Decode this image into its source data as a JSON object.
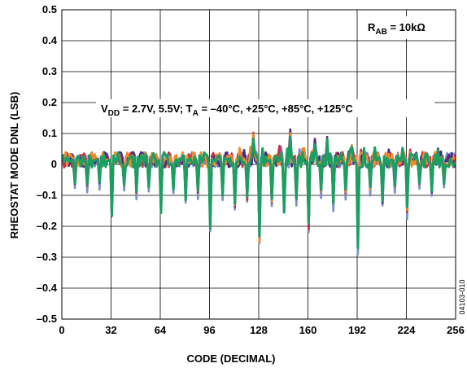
{
  "chart_data": {
    "type": "line",
    "title": "",
    "xlabel": "CODE (DECIMAL)",
    "ylabel": "RHEOSTAT MODE DNL (LSB)",
    "xlim": [
      0,
      256
    ],
    "ylim": [
      -0.5,
      0.5
    ],
    "x_ticks": [
      0,
      32,
      64,
      96,
      128,
      160,
      192,
      224,
      256
    ],
    "x_tick_labels": [
      "0",
      "32",
      "64",
      "96",
      "128",
      "160",
      "192",
      "224",
      "256"
    ],
    "y_ticks": [
      -0.5,
      -0.4,
      -0.3,
      -0.2,
      -0.1,
      0,
      0.1,
      0.2,
      0.3,
      0.4,
      0.5
    ],
    "y_tick_labels": [
      "–0.5",
      "–0.4",
      "–0.3",
      "–0.2",
      "–0.1",
      "0",
      "0.1",
      "0.2",
      "0.3",
      "0.4",
      "0.5"
    ],
    "grid": true,
    "annotations": {
      "rab_main": "R",
      "rab_sub": "AB",
      "rab_rest": " = 10kΩ",
      "cond_v": "V",
      "cond_v_sub": "DD",
      "cond_mid": " = 2.7V, 5.5V; T",
      "cond_t_sub": "A",
      "cond_rest": " = –40°C, +25°C, +85°C, +125°C"
    },
    "figure_id": "04103-010",
    "series_colors": [
      "#7b8fc7",
      "#c9304a",
      "#4b2a8a",
      "#f08a2a",
      "#1a9e62"
    ],
    "major_dips": [
      {
        "code": 32,
        "dnl": -0.16
      },
      {
        "code": 64,
        "dnl": -0.15
      },
      {
        "code": 96,
        "dnl": -0.2
      },
      {
        "code": 128,
        "dnl": -0.25
      },
      {
        "code": 160,
        "dnl": -0.2
      },
      {
        "code": 192,
        "dnl": -0.26
      },
      {
        "code": 224,
        "dnl": -0.15
      }
    ],
    "medium_dips": [
      {
        "code": 16,
        "dnl": -0.07
      },
      {
        "code": 48,
        "dnl": -0.09
      },
      {
        "code": 80,
        "dnl": -0.11
      },
      {
        "code": 112,
        "dnl": -0.13
      },
      {
        "code": 144,
        "dnl": -0.15
      },
      {
        "code": 176,
        "dnl": -0.13
      },
      {
        "code": 208,
        "dnl": -0.12
      },
      {
        "code": 240,
        "dnl": -0.09
      }
    ],
    "minor_dips": [
      {
        "code": 8,
        "dnl": -0.06
      },
      {
        "code": 24,
        "dnl": -0.06
      },
      {
        "code": 40,
        "dnl": -0.07
      },
      {
        "code": 56,
        "dnl": -0.07
      },
      {
        "code": 72,
        "dnl": -0.08
      },
      {
        "code": 88,
        "dnl": -0.09
      },
      {
        "code": 104,
        "dnl": -0.1
      },
      {
        "code": 120,
        "dnl": -0.11
      },
      {
        "code": 136,
        "dnl": -0.12
      },
      {
        "code": 152,
        "dnl": -0.11
      },
      {
        "code": 168,
        "dnl": -0.09
      },
      {
        "code": 184,
        "dnl": -0.09
      },
      {
        "code": 200,
        "dnl": -0.08
      },
      {
        "code": 216,
        "dnl": -0.07
      },
      {
        "code": 232,
        "dnl": -0.06
      },
      {
        "code": 248,
        "dnl": -0.06
      }
    ],
    "peaks": [
      {
        "code": 124,
        "dnl": 0.1
      },
      {
        "code": 136,
        "dnl": 0.12
      },
      {
        "code": 148,
        "dnl": 0.11
      },
      {
        "code": 164,
        "dnl": 0.08
      },
      {
        "code": 172,
        "dnl": 0.09
      },
      {
        "code": 188,
        "dnl": 0.06
      },
      {
        "code": 196,
        "dnl": 0.05
      },
      {
        "code": 244,
        "dnl": 0.05
      }
    ],
    "baseline_band": [
      -0.01,
      0.04
    ]
  }
}
